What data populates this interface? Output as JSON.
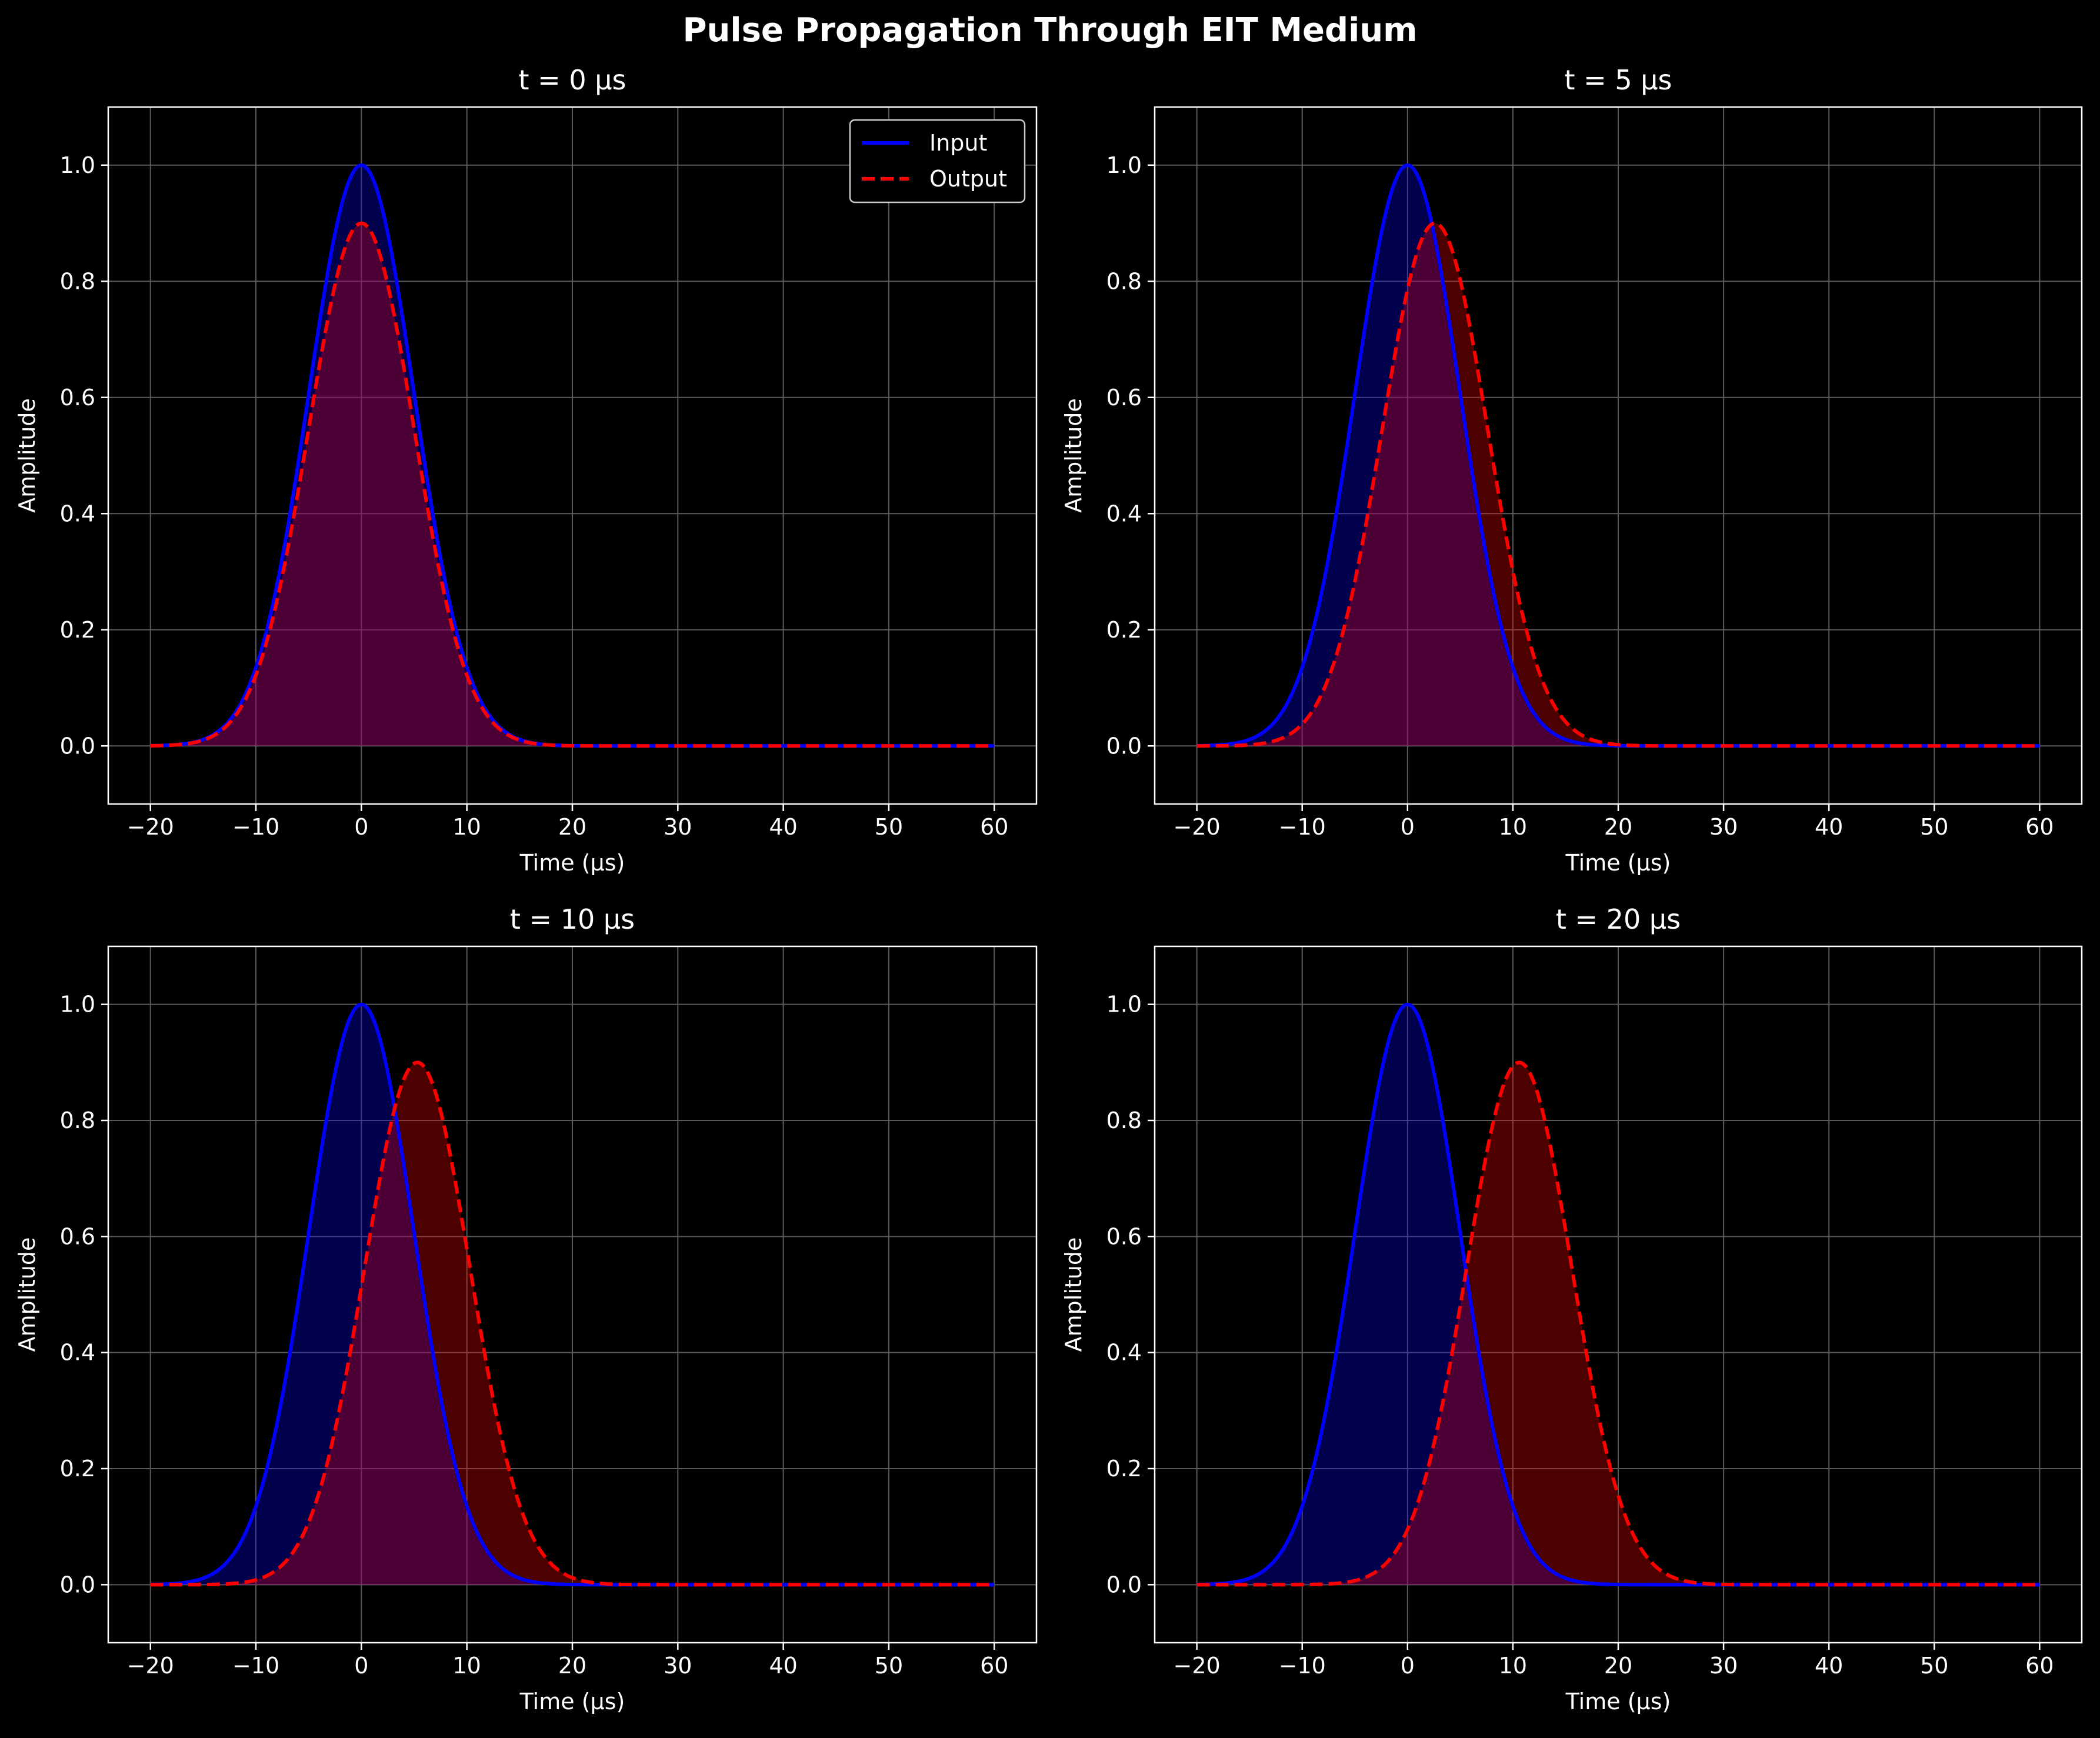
{
  "figure": {
    "title": "Pulse Propagation Through EIT Medium"
  },
  "legend": {
    "input_label": "Input",
    "output_label": "Output",
    "placement": "upper-right of first panel"
  },
  "colors": {
    "background": "#000000",
    "input": "#0000ff",
    "output": "#ff0000",
    "input_fill": "#00004d",
    "output_fill": "#4d0000",
    "overlap_fill": "#4d0033",
    "grid": "#5a5a5a",
    "axes": "#ffffff",
    "text": "#ffffff"
  },
  "chart_data": [
    {
      "type": "line",
      "title": "t = 0 μs",
      "xlabel": "Time (μs)",
      "ylabel": "Amplitude",
      "xlim": [
        -24,
        64
      ],
      "ylim": [
        -0.1,
        1.1
      ],
      "xticks": [
        -20,
        -10,
        0,
        10,
        20,
        30,
        40,
        50,
        60
      ],
      "yticks": [
        0.0,
        0.2,
        0.4,
        0.6,
        0.8,
        1.0
      ],
      "grid": true,
      "legend": true,
      "series": [
        {
          "name": "Input",
          "style": "solid",
          "shape": "gaussian",
          "x_range": [
            -20,
            60
          ],
          "peak_time": 0,
          "peak_amplitude": 1.0,
          "sigma": 5
        },
        {
          "name": "Output",
          "style": "dashed",
          "shape": "gaussian",
          "x_range": [
            -20,
            60
          ],
          "peak_time": 0,
          "peak_amplitude": 0.9,
          "sigma": 5
        }
      ]
    },
    {
      "type": "line",
      "title": "t = 5 μs",
      "xlabel": "Time (μs)",
      "ylabel": "Amplitude",
      "xlim": [
        -24,
        64
      ],
      "ylim": [
        -0.1,
        1.1
      ],
      "xticks": [
        -20,
        -10,
        0,
        10,
        20,
        30,
        40,
        50,
        60
      ],
      "yticks": [
        0.0,
        0.2,
        0.4,
        0.6,
        0.8,
        1.0
      ],
      "grid": true,
      "legend": false,
      "series": [
        {
          "name": "Input",
          "style": "solid",
          "shape": "gaussian",
          "x_range": [
            -20,
            60
          ],
          "peak_time": 0,
          "peak_amplitude": 1.0,
          "sigma": 5
        },
        {
          "name": "Output",
          "style": "dashed",
          "shape": "gaussian",
          "x_range": [
            -20,
            60
          ],
          "peak_time": 2.6,
          "peak_amplitude": 0.9,
          "sigma": 5
        }
      ]
    },
    {
      "type": "line",
      "title": "t = 10 μs",
      "xlabel": "Time (μs)",
      "ylabel": "Amplitude",
      "xlim": [
        -24,
        64
      ],
      "ylim": [
        -0.1,
        1.1
      ],
      "xticks": [
        -20,
        -10,
        0,
        10,
        20,
        30,
        40,
        50,
        60
      ],
      "yticks": [
        0.0,
        0.2,
        0.4,
        0.6,
        0.8,
        1.0
      ],
      "grid": true,
      "legend": false,
      "series": [
        {
          "name": "Input",
          "style": "solid",
          "shape": "gaussian",
          "x_range": [
            -20,
            60
          ],
          "peak_time": 0,
          "peak_amplitude": 1.0,
          "sigma": 5
        },
        {
          "name": "Output",
          "style": "dashed",
          "shape": "gaussian",
          "x_range": [
            -20,
            60
          ],
          "peak_time": 5.3,
          "peak_amplitude": 0.9,
          "sigma": 5
        }
      ]
    },
    {
      "type": "line",
      "title": "t = 20 μs",
      "xlabel": "Time (μs)",
      "ylabel": "Amplitude",
      "xlim": [
        -24,
        64
      ],
      "ylim": [
        -0.1,
        1.1
      ],
      "xticks": [
        -20,
        -10,
        0,
        10,
        20,
        30,
        40,
        50,
        60
      ],
      "yticks": [
        0.0,
        0.2,
        0.4,
        0.6,
        0.8,
        1.0
      ],
      "grid": true,
      "legend": false,
      "series": [
        {
          "name": "Input",
          "style": "solid",
          "shape": "gaussian",
          "x_range": [
            -20,
            60
          ],
          "peak_time": 0,
          "peak_amplitude": 1.0,
          "sigma": 5
        },
        {
          "name": "Output",
          "style": "dashed",
          "shape": "gaussian",
          "x_range": [
            -20,
            60
          ],
          "peak_time": 10.6,
          "peak_amplitude": 0.9,
          "sigma": 5
        }
      ]
    }
  ]
}
